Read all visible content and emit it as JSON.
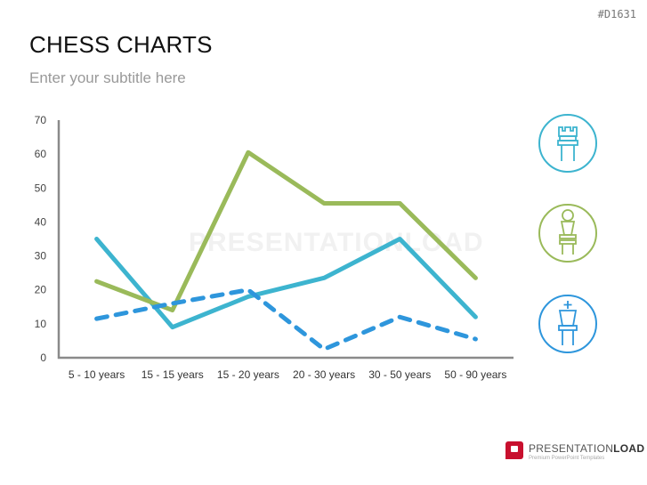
{
  "slide": {
    "code": "#D1631",
    "title": "CHESS CHARTS",
    "subtitle": "Enter your subtitle here",
    "watermark": "PRESENTATIONLOAD",
    "logo": {
      "name_light": "PRESENTATION",
      "name_bold": "LOAD",
      "tagline": "Premium PowerPoint Templates"
    }
  },
  "legend_icons": [
    {
      "name": "rook",
      "color": "#3db4cf"
    },
    {
      "name": "pawn",
      "color": "#9aba5a"
    },
    {
      "name": "king",
      "color": "#2e96dc"
    }
  ],
  "chart_data": {
    "type": "line",
    "title": "",
    "xlabel": "",
    "ylabel": "",
    "ylim": [
      0,
      70
    ],
    "yticks": [
      0,
      10,
      20,
      30,
      40,
      50,
      60,
      70
    ],
    "grid": false,
    "legend": "icons on right (rook, pawn, king)",
    "categories": [
      "5 - 10 years",
      "15 - 15 years",
      "15 - 20 years",
      "20 - 30 years",
      "30 - 50 years",
      "50 - 90 years"
    ],
    "series": [
      {
        "name": "Rook",
        "color": "#3db4cf",
        "style": "solid",
        "values": [
          35,
          9,
          18,
          23.5,
          35,
          12
        ]
      },
      {
        "name": "Pawn",
        "color": "#9aba5a",
        "style": "solid",
        "values": [
          22.5,
          14,
          60.5,
          45.5,
          45.5,
          23.5
        ]
      },
      {
        "name": "King",
        "color": "#2e96dc",
        "style": "dashed",
        "values": [
          11.5,
          16,
          20,
          2.5,
          12,
          5.5
        ]
      }
    ]
  }
}
